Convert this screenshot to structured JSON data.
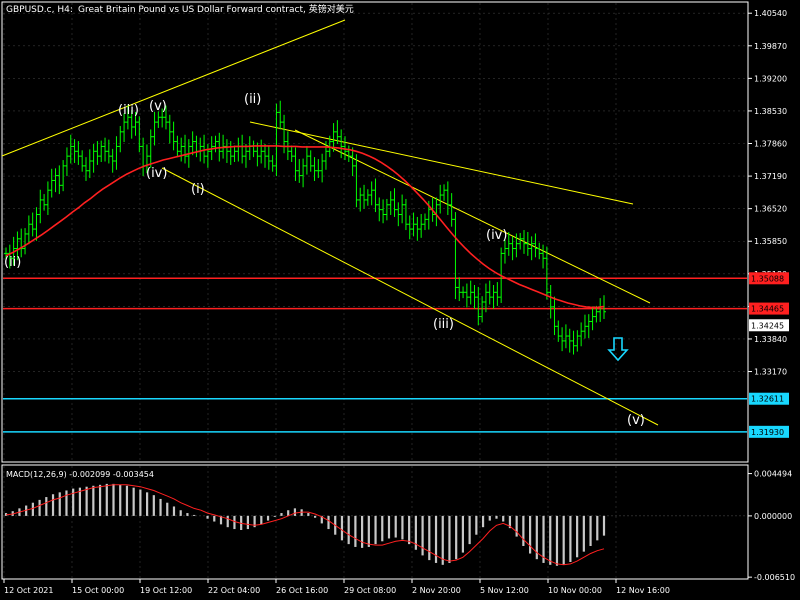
{
  "header": {
    "symbol": "GBPUSD.c, H4:",
    "description": "Great Britain Pound vs US Dollar Forward contract, 英镑对美元"
  },
  "chart_data": [
    {
      "type": "line",
      "name": "price",
      "ylim": [
        1.3133,
        1.4075
      ],
      "y_ticks": [
        "1.40540",
        "1.39870",
        "1.39200",
        "1.38530",
        "1.37860",
        "1.37190",
        "1.36520",
        "1.35850",
        "1.35180",
        "1.34510",
        "1.33840",
        "1.33170"
      ],
      "x_ticks": [
        "12 Oct 2021",
        "15 Oct 00:00",
        "19 Oct 12:00",
        "22 Oct 04:00",
        "26 Oct 16:00",
        "29 Oct 08:00",
        "2 Nov 20:00",
        "5 Nov 12:00",
        "10 Nov 00:00",
        "12 Nov 16:00"
      ],
      "price_series": [
        1.356,
        1.355,
        1.357,
        1.359,
        1.357,
        1.36,
        1.362,
        1.361,
        1.364,
        1.367,
        1.366,
        1.369,
        1.371,
        1.372,
        1.37,
        1.374,
        1.376,
        1.378,
        1.377,
        1.376,
        1.374,
        1.373,
        1.375,
        1.377,
        1.376,
        1.378,
        1.377,
        1.376,
        1.375,
        1.378,
        1.381,
        1.383,
        1.384,
        1.382,
        1.383,
        1.378,
        1.374,
        1.376,
        1.38,
        1.383,
        1.384,
        1.384,
        1.383,
        1.381,
        1.379,
        1.377,
        1.378,
        1.376,
        1.378,
        1.379,
        1.377,
        1.378,
        1.376,
        1.377,
        1.378,
        1.379,
        1.377,
        1.378,
        1.377,
        1.376,
        1.377,
        1.378,
        1.376,
        1.377,
        1.378,
        1.377,
        1.376,
        1.377,
        1.376,
        1.375,
        1.374,
        1.385,
        1.383,
        1.379,
        1.377,
        1.376,
        1.373,
        1.372,
        1.374,
        1.376,
        1.374,
        1.373,
        1.373,
        1.375,
        1.377,
        1.379,
        1.381,
        1.38,
        1.378,
        1.377,
        1.376,
        1.374,
        1.367,
        1.368,
        1.367,
        1.368,
        1.369,
        1.366,
        1.365,
        1.364,
        1.366,
        1.367,
        1.365,
        1.364,
        1.366,
        1.362,
        1.361,
        1.362,
        1.361,
        1.362,
        1.363,
        1.365,
        1.364,
        1.366,
        1.368,
        1.369,
        1.366,
        1.363,
        1.349,
        1.348,
        1.348,
        1.347,
        1.348,
        1.347,
        1.343,
        1.346,
        1.348,
        1.347,
        1.348,
        1.347,
        1.356,
        1.357,
        1.358,
        1.357,
        1.358,
        1.359,
        1.358,
        1.357,
        1.358,
        1.357,
        1.356,
        1.355,
        1.348,
        1.345,
        1.341,
        1.339,
        1.338,
        1.339,
        1.338,
        1.337,
        1.339,
        1.34,
        1.341,
        1.342,
        1.343,
        1.344,
        1.345,
        1.344
      ],
      "ma_series": [
        1.3555,
        1.3561,
        1.3568,
        1.3575,
        1.3583,
        1.3591,
        1.3599,
        1.3608,
        1.3617,
        1.3626,
        1.3635,
        1.3645,
        1.3654,
        1.3664,
        1.3673,
        1.3683,
        1.3692,
        1.37,
        1.3708,
        1.3716,
        1.3723,
        1.3729,
        1.3735,
        1.374,
        1.3744,
        1.3748,
        1.3752,
        1.3755,
        1.3758,
        1.3761,
        1.3764,
        1.3767,
        1.377,
        1.3773,
        1.3775,
        1.3777,
        1.3778,
        1.3779,
        1.378,
        1.378,
        1.378,
        1.3781,
        1.3781,
        1.3781,
        1.3781,
        1.3781,
        1.378,
        1.378,
        1.378,
        1.3779,
        1.3779,
        1.3779,
        1.3779,
        1.3779,
        1.3778,
        1.3777,
        1.3775,
        1.3773,
        1.377,
        1.3766,
        1.3761,
        1.3755,
        1.3748,
        1.374,
        1.3731,
        1.3721,
        1.371,
        1.3698,
        1.3685,
        1.3672,
        1.3658,
        1.3643,
        1.3628,
        1.3613,
        1.3598,
        1.3584,
        1.3571,
        1.3559,
        1.3548,
        1.3538,
        1.3529,
        1.3521,
        1.3514,
        1.3508,
        1.3502,
        1.3496,
        1.3491,
        1.3486,
        1.3481,
        1.3476,
        1.3471,
        1.3466,
        1.3462,
        1.3458,
        1.3455,
        1.3452,
        1.345,
        1.3449,
        1.3449,
        1.3451
      ],
      "horizontal_levels": [
        {
          "label": "1.35088",
          "value": 1.35088,
          "color": "#ff2020"
        },
        {
          "label": "1.34465",
          "value": 1.34465,
          "color": "#ff2020"
        },
        {
          "label": "1.32611",
          "value": 1.32611,
          "color": "#18d8ff"
        },
        {
          "label": "1.31930",
          "value": 1.3193,
          "color": "#18d8ff"
        }
      ],
      "current_price_label": "1.34245",
      "wave_labels": [
        "(ii)",
        "(iii)",
        "(v)",
        "(iv)",
        "(i)",
        "(ii)",
        "(iii)",
        "(iv)",
        "(v)"
      ],
      "colors": {
        "bull": "#00ff00",
        "ma": "#ff2020",
        "trendline": "#ffff00",
        "arrow": "#18d8ff",
        "axis": "#ffffff"
      }
    },
    {
      "type": "bar",
      "name": "macd",
      "title": "MACD(12,26,9) -0.002099 -0.003454",
      "ylim": [
        -0.0066,
        0.0053
      ],
      "y_ticks": [
        "0.004494",
        "0.000000",
        "-0.006510"
      ],
      "histogram": [
        0.0003,
        0.0005,
        0.0008,
        0.0011,
        0.0014,
        0.0017,
        0.002,
        0.0023,
        0.0025,
        0.0027,
        0.0029,
        0.003,
        0.0031,
        0.0032,
        0.0033,
        0.0034,
        0.0034,
        0.0033,
        0.0032,
        0.003,
        0.0028,
        0.0025,
        0.0022,
        0.0018,
        0.0014,
        0.001,
        0.0006,
        0.0003,
        0.0001,
        0.0,
        -0.0003,
        -0.0006,
        -0.0009,
        -0.0012,
        -0.0014,
        -0.0015,
        -0.0014,
        -0.0012,
        -0.0009,
        -0.0005,
        -0.0001,
        0.0003,
        0.0006,
        0.0008,
        0.0007,
        0.0003,
        -0.0002,
        -0.0008,
        -0.0014,
        -0.002,
        -0.0026,
        -0.003,
        -0.0033,
        -0.0034,
        -0.0033,
        -0.003,
        -0.0027,
        -0.0024,
        -0.0023,
        -0.0025,
        -0.003,
        -0.0036,
        -0.0042,
        -0.0047,
        -0.005,
        -0.0052,
        -0.005,
        -0.0046,
        -0.0039,
        -0.003,
        -0.002,
        -0.0012,
        -0.0005,
        -0.0003,
        -0.0006,
        -0.0013,
        -0.0022,
        -0.0032,
        -0.004,
        -0.0046,
        -0.005,
        -0.0052,
        -0.0053,
        -0.0052,
        -0.0049,
        -0.0044,
        -0.0038,
        -0.0032,
        -0.0026,
        -0.0021
      ],
      "signal": [
        0.0001,
        0.0002,
        0.0004,
        0.0006,
        0.0008,
        0.0011,
        0.0014,
        0.0017,
        0.0019,
        0.0022,
        0.0024,
        0.0026,
        0.0028,
        0.003,
        0.0031,
        0.0032,
        0.0033,
        0.0033,
        0.0033,
        0.0032,
        0.0031,
        0.0029,
        0.0027,
        0.0024,
        0.0021,
        0.0018,
        0.0014,
        0.0011,
        0.0008,
        0.0006,
        0.0003,
        0.0001,
        -0.0001,
        -0.0003,
        -0.0006,
        -0.0008,
        -0.0009,
        -0.001,
        -0.0009,
        -0.0007,
        -0.0005,
        -0.0003,
        0.0,
        0.0003,
        0.0004,
        0.0004,
        0.0002,
        -0.0001,
        -0.0005,
        -0.001,
        -0.0015,
        -0.002,
        -0.0024,
        -0.0028,
        -0.003,
        -0.0031,
        -0.0031,
        -0.0029,
        -0.0027,
        -0.0026,
        -0.0027,
        -0.003,
        -0.0034,
        -0.0038,
        -0.0042,
        -0.0046,
        -0.0048,
        -0.0047,
        -0.0044,
        -0.0038,
        -0.0031,
        -0.0024,
        -0.0016,
        -0.001,
        -0.0008,
        -0.0011,
        -0.0017,
        -0.0025,
        -0.0032,
        -0.0039,
        -0.0044,
        -0.0048,
        -0.0051,
        -0.0052,
        -0.0051,
        -0.0048,
        -0.0044,
        -0.004,
        -0.0037,
        -0.0035
      ]
    }
  ]
}
